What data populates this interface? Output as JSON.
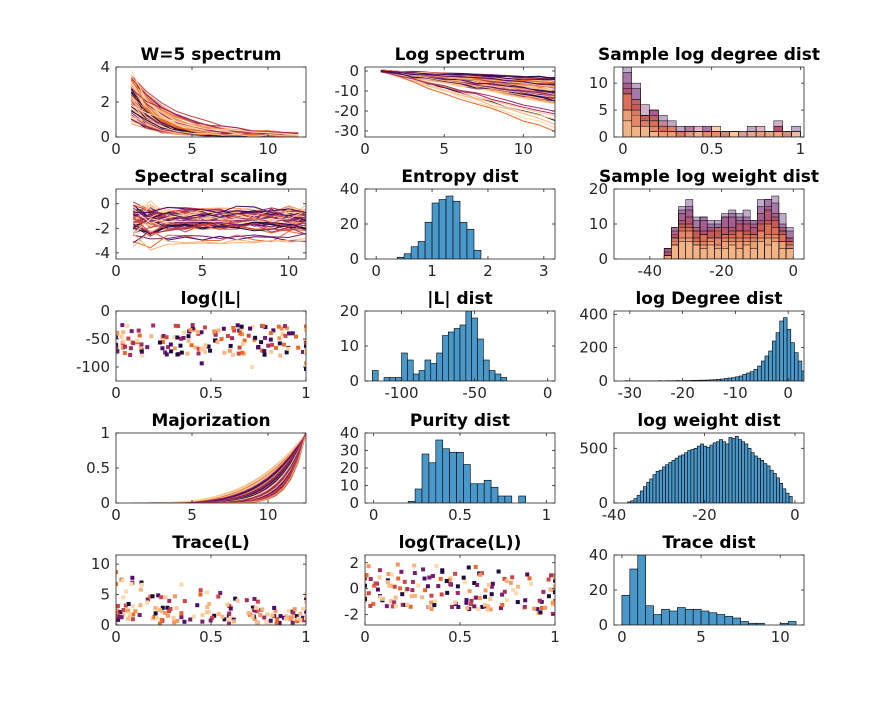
{
  "colors": {
    "bar_fill": "#4a97c9",
    "bar_edge": "#000000",
    "palette": [
      "#1b0c41",
      "#4a0c6b",
      "#781c6d",
      "#a52c60",
      "#cf4446",
      "#ed6925",
      "#f8965a",
      "#fbb47d",
      "#fcc893",
      "#fdd9aa"
    ]
  },
  "chart_data": [
    {
      "id": "p1",
      "type": "line",
      "title": "W=5 spectrum",
      "xlim": [
        0,
        12.5
      ],
      "ylim": [
        0,
        4
      ],
      "xticks": [
        0,
        5,
        10
      ],
      "yticks": [
        0,
        2,
        4
      ],
      "xtick_labels": [
        "0",
        "5",
        "10"
      ],
      "ytick_labels": [
        "0",
        "2",
        "4"
      ],
      "gen": "spectrum",
      "n_series": 70
    },
    {
      "id": "p2",
      "type": "line",
      "title": "Log spectrum",
      "xlim": [
        0,
        12
      ],
      "ylim": [
        -33,
        2
      ],
      "xticks": [
        0,
        5,
        10
      ],
      "yticks": [
        0,
        -10,
        -20,
        -30
      ],
      "xtick_labels": [
        "0",
        "5",
        "10"
      ],
      "ytick_labels": [
        "0",
        "-10",
        "-20",
        "-30"
      ],
      "gen": "logspec",
      "n_series": 70
    },
    {
      "id": "p3",
      "type": "bar",
      "title": "Sample log degree dist",
      "xlim": [
        -0.05,
        1.02
      ],
      "ylim": [
        0,
        13
      ],
      "xticks": [
        0,
        0.5,
        1
      ],
      "yticks": [
        0,
        5,
        10
      ],
      "xtick_labels": [
        "0",
        "0.5",
        "1"
      ],
      "ytick_labels": [
        "0",
        "5",
        "10"
      ],
      "bin_start": 0,
      "bin_width": 0.05,
      "values": [
        13,
        9,
        5,
        5,
        3,
        2,
        2,
        1,
        1,
        1,
        1,
        1,
        1,
        1,
        1,
        1,
        1,
        2,
        1,
        1
      ],
      "stacked_samples": true
    },
    {
      "id": "p4",
      "type": "line",
      "title": "Spectral scaling",
      "xlim": [
        0,
        11
      ],
      "ylim": [
        -4.5,
        1.2
      ],
      "xticks": [
        0,
        5,
        10
      ],
      "yticks": [
        0,
        -2,
        -4
      ],
      "xtick_labels": [
        "0",
        "5",
        "10"
      ],
      "ytick_labels": [
        "0",
        "-2",
        "-4"
      ],
      "gen": "scaling",
      "n_series": 70
    },
    {
      "id": "p5",
      "type": "bar",
      "title": "Entropy dist",
      "xlim": [
        -0.2,
        3.2
      ],
      "ylim": [
        0,
        40
      ],
      "xticks": [
        0,
        1,
        2,
        3
      ],
      "yticks": [
        0,
        20,
        40
      ],
      "xtick_labels": [
        "0",
        "1",
        "2",
        "3"
      ],
      "ytick_labels": [
        "0",
        "20",
        "40"
      ],
      "bin_start": 0,
      "bin_width": 0.125,
      "values": [
        0,
        0,
        0,
        1,
        3,
        7,
        10,
        21,
        32,
        34,
        36,
        33,
        21,
        17,
        5,
        0,
        0,
        0,
        0,
        0,
        0,
        0,
        0,
        0,
        0
      ]
    },
    {
      "id": "p6",
      "type": "bar",
      "title": "Sample log weight dist",
      "xlim": [
        -50,
        3
      ],
      "ylim": [
        0,
        20
      ],
      "xticks": [
        -40,
        -20,
        0
      ],
      "yticks": [
        0,
        10,
        20
      ],
      "xtick_labels": [
        "-40",
        "-20",
        "0"
      ],
      "ytick_labels": [
        "0",
        "10",
        "20"
      ],
      "bin_start": -36,
      "bin_width": 2,
      "values": [
        3,
        10,
        15,
        16,
        11,
        12,
        12,
        12,
        13,
        14,
        13,
        14,
        12,
        16,
        18,
        17,
        12,
        8
      ],
      "stacked_samples": true
    },
    {
      "id": "p7",
      "type": "scatter",
      "title": "log(|L|",
      "xlim": [
        0,
        1
      ],
      "ylim": [
        -125,
        0
      ],
      "xticks": [
        0,
        0.5,
        1
      ],
      "yticks": [
        0,
        -50,
        -100
      ],
      "xtick_labels": [
        "0",
        "0.5",
        "1"
      ],
      "ytick_labels": [
        "0",
        "-50",
        "-100"
      ],
      "gen": "scatterL",
      "n_points": 170
    },
    {
      "id": "p8",
      "type": "bar",
      "title": "|L| dist",
      "xlim": [
        -125,
        5
      ],
      "ylim": [
        0,
        20
      ],
      "xticks": [
        -100,
        -50,
        0
      ],
      "yticks": [
        0,
        10,
        20
      ],
      "xtick_labels": [
        "-100",
        "-50",
        "0"
      ],
      "ytick_labels": [
        "0",
        "10",
        "20"
      ],
      "bin_start": -120,
      "bin_width": 4,
      "values": [
        3,
        0,
        1,
        1,
        1,
        8,
        6,
        2,
        3,
        6,
        5,
        8,
        13,
        14,
        15,
        16,
        20,
        18,
        12,
        6,
        3,
        2,
        1,
        0,
        0,
        0,
        0,
        0,
        0,
        0
      ]
    },
    {
      "id": "p9",
      "type": "bar",
      "title": "log Degree dist",
      "xlim": [
        -33,
        3
      ],
      "ylim": [
        0,
        420
      ],
      "xticks": [
        -30,
        -20,
        -10,
        0
      ],
      "yticks": [
        0,
        200,
        400
      ],
      "xtick_labels": [
        "-30",
        "-20",
        "-10",
        "0"
      ],
      "ytick_labels": [
        "0",
        "200",
        "400"
      ],
      "bin_start": -31,
      "bin_width": 0.7,
      "values": [
        2,
        1,
        1,
        1,
        1,
        1,
        1,
        1,
        1,
        2,
        1,
        2,
        2,
        2,
        3,
        2,
        3,
        3,
        4,
        4,
        5,
        5,
        6,
        7,
        8,
        10,
        12,
        15,
        18,
        20,
        25,
        30,
        40,
        48,
        56,
        70,
        90,
        120,
        150,
        180,
        240,
        290,
        360,
        380,
        310,
        230,
        170,
        120,
        60,
        20
      ]
    },
    {
      "id": "p10",
      "type": "line",
      "title": "Majorization",
      "xlim": [
        0,
        12.5
      ],
      "ylim": [
        0,
        1
      ],
      "xticks": [
        0,
        5,
        10
      ],
      "yticks": [
        0,
        0.5,
        1
      ],
      "xtick_labels": [
        "0",
        "5",
        "10"
      ],
      "ytick_labels": [
        "0",
        "0.5",
        "1"
      ],
      "gen": "major",
      "n_series": 70
    },
    {
      "id": "p11",
      "type": "bar",
      "title": "Purity dist",
      "xlim": [
        -0.05,
        1.05
      ],
      "ylim": [
        0,
        40
      ],
      "xticks": [
        0,
        0.5,
        1
      ],
      "yticks": [
        0,
        10,
        20,
        30,
        40
      ],
      "xtick_labels": [
        "0",
        "0.5",
        "1"
      ],
      "ytick_labels": [
        "0",
        "10",
        "20",
        "30",
        "40"
      ],
      "bin_start": 0.2,
      "bin_width": 0.04,
      "values": [
        1,
        8,
        28,
        23,
        36,
        31,
        29,
        29,
        22,
        11,
        11,
        13,
        9,
        4,
        4,
        0,
        4,
        0,
        0
      ]
    },
    {
      "id": "p12",
      "type": "bar",
      "title": "log weight dist",
      "xlim": [
        -40,
        2
      ],
      "ylim": [
        0,
        640
      ],
      "xticks": [
        -40,
        -20,
        0
      ],
      "yticks": [
        0,
        500
      ],
      "xtick_labels": [
        "-40",
        "-20",
        "0"
      ],
      "ytick_labels": [
        "0",
        "500"
      ],
      "bin_start": -37,
      "bin_width": 0.7,
      "values": [
        10,
        20,
        40,
        70,
        110,
        150,
        190,
        220,
        260,
        290,
        300,
        330,
        350,
        370,
        390,
        410,
        430,
        440,
        460,
        480,
        490,
        500,
        520,
        540,
        520,
        510,
        530,
        550,
        560,
        580,
        560,
        540,
        600,
        590,
        610,
        580,
        560,
        540,
        500,
        460,
        430,
        410,
        390,
        360,
        340,
        300,
        270,
        230,
        180,
        130,
        90,
        60
      ]
    },
    {
      "id": "p13",
      "type": "scatter",
      "title": "Trace(L)",
      "xlim": [
        0,
        1
      ],
      "ylim": [
        0,
        11.5
      ],
      "xticks": [
        0,
        0.5,
        1
      ],
      "yticks": [
        0,
        5,
        10
      ],
      "xtick_labels": [
        "0",
        "0.5",
        "1"
      ],
      "ytick_labels": [
        "0",
        "5",
        "10"
      ],
      "gen": "scatterT",
      "n_points": 170
    },
    {
      "id": "p14",
      "type": "scatter",
      "title": "log(Trace(L))",
      "xlim": [
        0,
        1
      ],
      "ylim": [
        -2.8,
        2.6
      ],
      "xticks": [
        0,
        0.5,
        1
      ],
      "yticks": [
        2,
        0,
        -2
      ],
      "xtick_labels": [
        "0",
        "0.5",
        "1"
      ],
      "ytick_labels": [
        "2",
        "0",
        "-2"
      ],
      "gen": "scatterLT",
      "n_points": 170
    },
    {
      "id": "p15",
      "type": "bar",
      "title": "Trace dist",
      "xlim": [
        -0.5,
        11.5
      ],
      "ylim": [
        0,
        40
      ],
      "xticks": [
        0,
        5,
        10
      ],
      "yticks": [
        0,
        20,
        40
      ],
      "xtick_labels": [
        "0",
        "5",
        "10"
      ],
      "ytick_labels": [
        "0",
        "20",
        "40"
      ],
      "bin_start": 0,
      "bin_width": 0.5,
      "values": [
        17,
        32,
        40,
        11,
        6,
        9,
        8,
        10,
        9,
        9,
        8,
        7,
        6,
        5,
        4,
        2,
        1,
        1,
        0,
        0,
        1,
        2
      ]
    }
  ]
}
